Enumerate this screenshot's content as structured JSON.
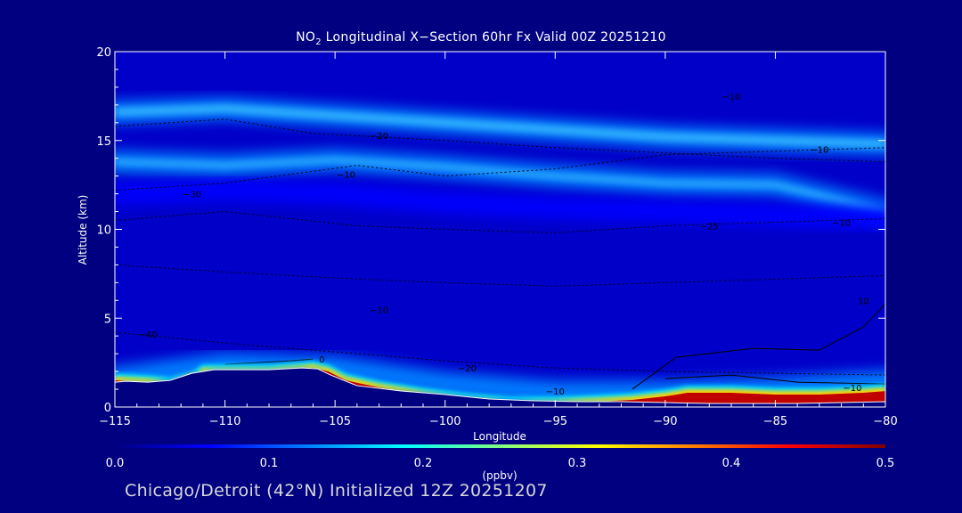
{
  "title_pre": "NO",
  "title_sub": "2",
  "title_post": " Longitudinal X−Section 60hr  Fx Valid 00Z 20251210",
  "footer": "Chicago/Detroit (42°N) Initialized 12Z 20251207",
  "chart_data": {
    "type": "heatmap",
    "xlabel": "Longitude",
    "ylabel": "Altitude (km)",
    "xlim": [
      -115,
      -80
    ],
    "ylim": [
      0,
      20
    ],
    "xticks": [
      -115,
      -110,
      -105,
      -100,
      -95,
      -90,
      -85,
      -80
    ],
    "xtick_labels": [
      "−115",
      "−110",
      "−105",
      "−100",
      "−95",
      "−90",
      "−85",
      "−80"
    ],
    "yticks": [
      0,
      5,
      10,
      15,
      20
    ],
    "ytick_labels": [
      "0",
      "5",
      "10",
      "15",
      "20"
    ],
    "colorbar": {
      "label": "(ppbv)",
      "min": 0.0,
      "max": 0.5,
      "ticks": [
        0.0,
        0.1,
        0.2,
        0.3,
        0.4,
        0.5
      ],
      "tick_labels": [
        "0.0",
        "0.1",
        "0.2",
        "0.3",
        "0.4",
        "0.5"
      ],
      "colormap": [
        "#000080",
        "#0000ff",
        "#0080ff",
        "#00ffff",
        "#80ff80",
        "#ffff00",
        "#ff8000",
        "#ff0000",
        "#800000"
      ]
    },
    "bands": [
      {
        "x": [
          -115,
          -110,
          -105,
          -100,
          -95,
          -90,
          -85,
          -80
        ],
        "y": [
          16.6,
          16.8,
          16.4,
          16.0,
          15.6,
          15.2,
          15.0,
          14.8
        ],
        "value": 0.14
      },
      {
        "x": [
          -115,
          -110,
          -105,
          -100,
          -95,
          -90,
          -85,
          -80
        ],
        "y": [
          13.8,
          13.6,
          13.9,
          13.5,
          13.0,
          12.6,
          12.5,
          11.0
        ],
        "value": 0.12
      },
      {
        "x": [
          -115,
          -110,
          -105,
          -100,
          -95,
          -90,
          -85,
          -80
        ],
        "y": [
          12.0,
          12.2,
          12.0,
          11.5,
          11.2,
          11.0,
          10.8,
          10.6
        ],
        "value": 0.07
      },
      {
        "x": [
          -115,
          -110,
          -105,
          -100,
          -95,
          -90,
          -85,
          -80
        ],
        "y": [
          1.6,
          2.4,
          2.2,
          1.3,
          0.8,
          0.8,
          1.0,
          1.4
        ],
        "value": 0.15
      }
    ],
    "terrain": {
      "x": [
        -115,
        -114.5,
        -113.5,
        -112.5,
        -111.5,
        -110.5,
        -108,
        -106.5,
        -105.8,
        -105.2,
        -104,
        -102,
        -100,
        -98,
        -96,
        -94,
        -92,
        -90,
        -88,
        -86,
        -84,
        -82,
        -80
      ],
      "y": [
        1.4,
        1.45,
        1.4,
        1.5,
        1.9,
        2.1,
        2.1,
        2.2,
        2.15,
        1.8,
        1.2,
        0.9,
        0.7,
        0.45,
        0.35,
        0.3,
        0.3,
        0.25,
        0.2,
        0.2,
        0.2,
        0.25,
        0.3
      ]
    },
    "high_surface": {
      "x": [
        -115,
        -113.5,
        -112.5,
        -111.5,
        -111,
        -108,
        -106,
        -105.3,
        -104.5,
        -103,
        -101,
        -99,
        -97,
        -95,
        -93,
        -91.5,
        -90,
        -89,
        -87,
        -85,
        -83,
        -81,
        -80
      ],
      "y": [
        1.9,
        1.8,
        1.7,
        2.0,
        2.4,
        2.4,
        2.6,
        2.4,
        1.9,
        1.5,
        1.1,
        0.8,
        0.6,
        0.6,
        0.7,
        0.8,
        1.0,
        1.2,
        1.2,
        1.1,
        1.1,
        1.2,
        1.3
      ]
    },
    "contour_labels": [
      "−10",
      "−20",
      "−30",
      "−25",
      "−40",
      "0",
      "10"
    ]
  }
}
